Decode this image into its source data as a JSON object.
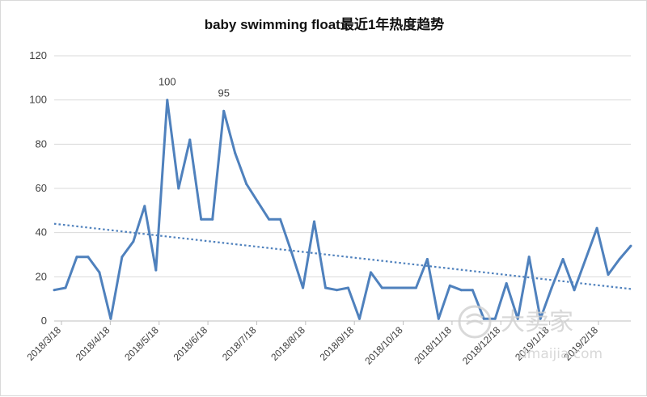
{
  "chart_data": {
    "type": "line",
    "title": "baby swimming float最近1年热度趋势",
    "xlabel": "",
    "ylabel": "",
    "ylim": [
      0,
      120
    ],
    "yticks": [
      0,
      20,
      40,
      60,
      80,
      100,
      120
    ],
    "grid": true,
    "legend": "none",
    "x_tick_labels": [
      "2018/3/18",
      "2018/4/18",
      "2018/5/18",
      "2018/6/18",
      "2018/7/18",
      "2018/8/18",
      "2018/9/18",
      "2018/10/18",
      "2018/11/18",
      "2018/12/18",
      "2019/1/18",
      "2019/2/18"
    ],
    "series": [
      {
        "color": "#4f81bd",
        "values": [
          14,
          15,
          29,
          29,
          22,
          1,
          29,
          36,
          52,
          23,
          100,
          60,
          82,
          46,
          46,
          95,
          76,
          62,
          54,
          46,
          46,
          31,
          15,
          45,
          15,
          14,
          15,
          1,
          22,
          15,
          15,
          15,
          15,
          28,
          1,
          16,
          14,
          14,
          1,
          1,
          17,
          1,
          29,
          1,
          15,
          28,
          14,
          28,
          42,
          21,
          28,
          34
        ]
      }
    ],
    "trendline": {
      "type": "linear",
      "color": "#4f81bd",
      "start": 44,
      "end": 14.5
    },
    "data_labels": [
      {
        "text": "100",
        "index": 10
      },
      {
        "text": "95",
        "index": 15
      }
    ]
  },
  "watermark": {
    "brand": "大卖家",
    "site": "dmaijia.com"
  }
}
